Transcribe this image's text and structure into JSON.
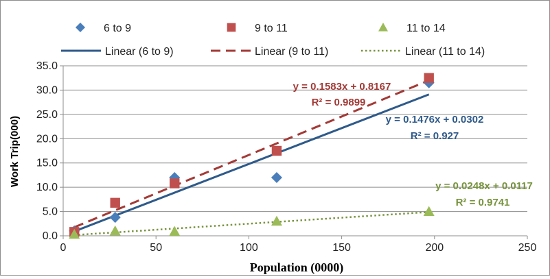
{
  "chart_data": {
    "type": "scatter",
    "xlabel": "Population (0000)",
    "ylabel": "Work Trip(000)",
    "xlim": [
      0,
      250
    ],
    "ylim": [
      0,
      35
    ],
    "x_ticks": [
      "0",
      "50",
      "100",
      "150",
      "200",
      "250"
    ],
    "y_ticks": [
      "0.0",
      "5.0",
      "10.0",
      "15.0",
      "20.0",
      "25.0",
      "30.0",
      "35.0"
    ],
    "grid": "horizontal",
    "legend_position": "top",
    "series": [
      {
        "name": "6 to 9",
        "marker": "diamond",
        "color": "#4a7ebb",
        "x": [
          6,
          28,
          60,
          115,
          197
        ],
        "y": [
          1.0,
          3.8,
          12.0,
          12.0,
          31.5
        ],
        "trendline": {
          "name": "Linear (6 to 9)",
          "style": "solid",
          "color": "#2e5a8a",
          "equation": "y = 0.1476x + 0.0302",
          "r2": "R² = 0.927",
          "slope": 0.1476,
          "intercept": 0.0302,
          "x_range": [
            6,
            197
          ]
        }
      },
      {
        "name": "9 to 11",
        "marker": "square",
        "color": "#c0504d",
        "x": [
          6,
          28,
          60,
          115,
          197
        ],
        "y": [
          0.8,
          6.8,
          10.8,
          17.5,
          32.5
        ],
        "trendline": {
          "name": "Linear (9 to 11)",
          "style": "dashed",
          "color": "#a33a36",
          "equation": "y = 0.1583x + 0.8167",
          "r2": "R² = 0.9899",
          "slope": 0.1583,
          "intercept": 0.8167,
          "x_range": [
            6,
            197
          ]
        }
      },
      {
        "name": "11 to 14",
        "marker": "triangle",
        "color": "#9bbb59",
        "x": [
          6,
          28,
          60,
          115,
          197
        ],
        "y": [
          0.3,
          1.0,
          0.9,
          3.0,
          5.0
        ],
        "trendline": {
          "name": "Linear (11 to 14)",
          "style": "dotted",
          "color": "#77933c",
          "equation": "y = 0.0248x + 0.0117",
          "r2": "R² = 0.9741",
          "slope": 0.0248,
          "intercept": 0.0117,
          "x_range": [
            6,
            197
          ]
        }
      }
    ]
  }
}
